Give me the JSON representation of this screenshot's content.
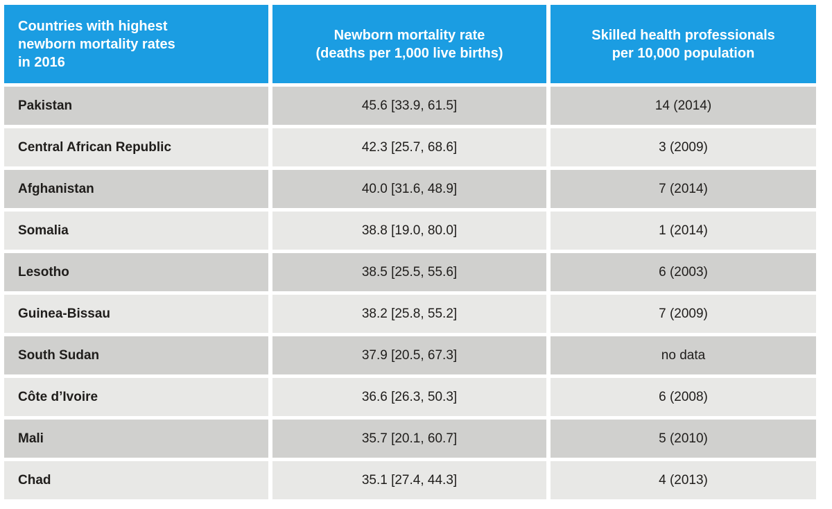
{
  "colors": {
    "header_bg": "#1b9de2",
    "row_dark": "#d0d0ce",
    "row_light": "#e8e8e6",
    "header_text": "#ffffff",
    "cell_text": "#1f1d1b"
  },
  "table": {
    "headers": [
      {
        "id": "countries",
        "label": "Countries with highest\nnewborn mortality rates\nin 2016"
      },
      {
        "id": "mortality_rate",
        "label": "Newborn mortality rate\n(deaths per 1,000 live births)"
      },
      {
        "id": "skilled_professionals",
        "label": "Skilled health professionals\nper 10,000 population"
      }
    ]
  },
  "chart_data": {
    "type": "table",
    "title": "Countries with highest newborn mortality rates in 2016",
    "columns": [
      "Countries with highest newborn mortality rates in 2016",
      "Newborn mortality rate (deaths per 1,000 live births)",
      "Skilled health professionals per 10,000 population"
    ],
    "rows": [
      [
        "Pakistan",
        "45.6 [33.9, 61.5]",
        "14 (2014)"
      ],
      [
        "Central African Republic",
        "42.3 [25.7, 68.6]",
        "3 (2009)"
      ],
      [
        "Afghanistan",
        "40.0 [31.6, 48.9]",
        "7 (2014)"
      ],
      [
        "Somalia",
        "38.8 [19.0, 80.0]",
        "1 (2014)"
      ],
      [
        "Lesotho",
        "38.5 [25.5, 55.6]",
        "6 (2003)"
      ],
      [
        "Guinea-Bissau",
        "38.2 [25.8, 55.2]",
        "7 (2009)"
      ],
      [
        "South Sudan",
        "37.9 [20.5, 67.3]",
        "no data"
      ],
      [
        "Côte d’Ivoire",
        "36.6 [26.3, 50.3]",
        "6 (2008)"
      ],
      [
        "Mali",
        "35.7 [20.1, 60.7]",
        "5 (2010)"
      ],
      [
        "Chad",
        "35.1 [27.4, 44.3]",
        "4 (2013)"
      ]
    ]
  }
}
